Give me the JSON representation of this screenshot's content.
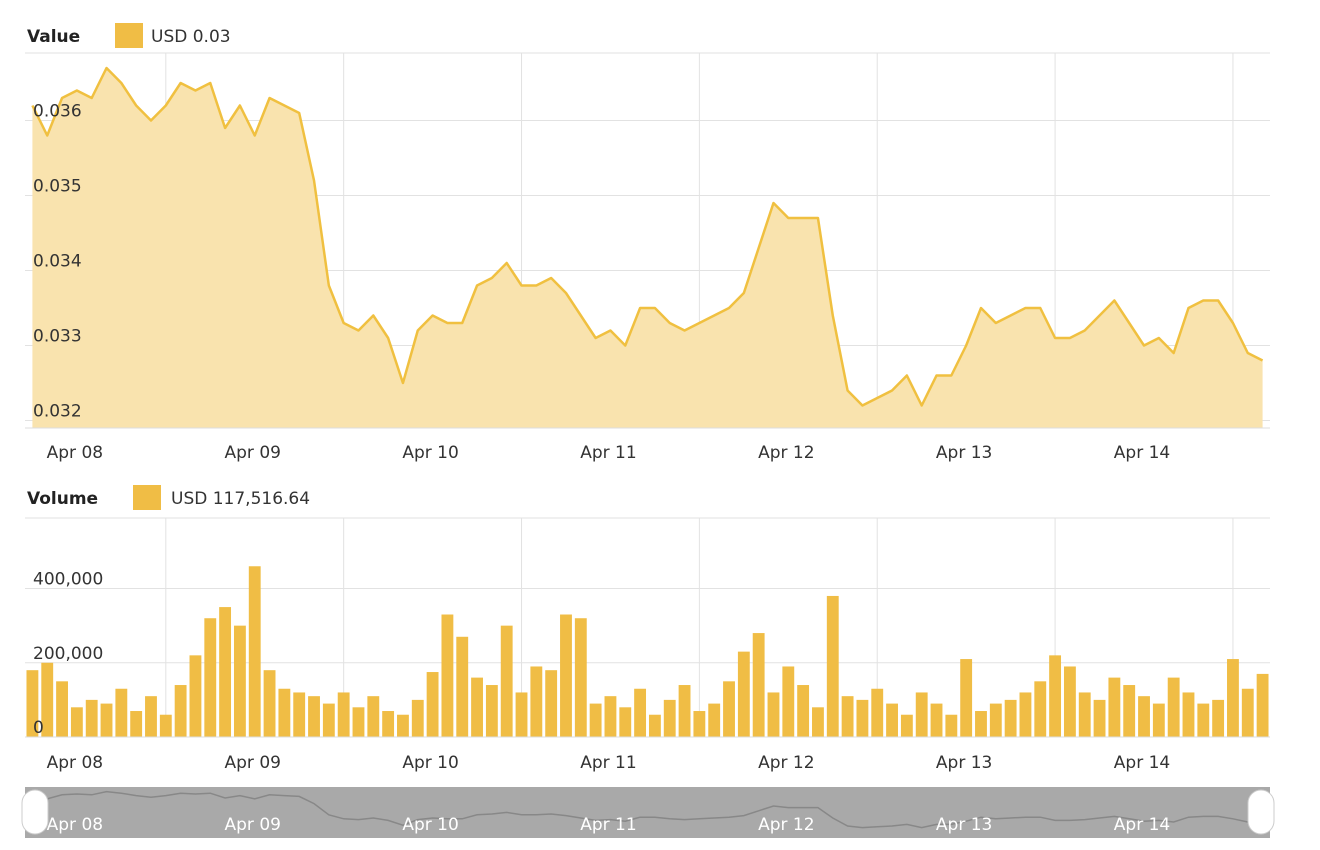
{
  "chart_data": [
    {
      "type": "area",
      "title": "Value",
      "legend_label": "USD 0.03",
      "color": "#f0c040",
      "fill": "#f9e3ae",
      "grid": true,
      "categories": [
        null,
        null,
        null,
        "Apr 08",
        null,
        null,
        null,
        null,
        null,
        null,
        null,
        null,
        null,
        null,
        null,
        "Apr 09",
        null,
        null,
        null,
        null,
        null,
        null,
        null,
        null,
        null,
        null,
        null,
        "Apr 10",
        null,
        null,
        null,
        null,
        null,
        null,
        null,
        null,
        null,
        null,
        null,
        "Apr 11",
        null,
        null,
        null,
        null,
        null,
        null,
        null,
        null,
        null,
        null,
        null,
        "Apr 12",
        null,
        null,
        null,
        null,
        null,
        null,
        null,
        null,
        null,
        null,
        null,
        "Apr 13",
        null,
        null,
        null,
        null,
        null,
        null,
        null,
        null,
        null,
        null,
        null,
        "Apr 14",
        null,
        null,
        null,
        null,
        null,
        null,
        null,
        null
      ],
      "values": [
        0.0362,
        0.0358,
        0.0363,
        0.0364,
        0.0363,
        0.0367,
        0.0365,
        0.0362,
        0.036,
        0.0362,
        0.0365,
        0.0364,
        0.0365,
        0.0359,
        0.0362,
        0.0358,
        0.0363,
        0.0362,
        0.0361,
        0.0352,
        0.0338,
        0.0333,
        0.0332,
        0.0334,
        0.0331,
        0.0325,
        0.0332,
        0.0334,
        0.0333,
        0.0333,
        0.0338,
        0.0339,
        0.0341,
        0.0338,
        0.0338,
        0.0339,
        0.0337,
        0.0334,
        0.0331,
        0.0332,
        0.033,
        0.0335,
        0.0335,
        0.0333,
        0.0332,
        0.0333,
        0.0334,
        0.0335,
        0.0337,
        0.0343,
        0.0349,
        0.0347,
        0.0347,
        0.0347,
        0.0334,
        0.0324,
        0.0322,
        0.0323,
        0.0324,
        0.0326,
        0.0322,
        0.0326,
        0.0326,
        0.033,
        0.0335,
        0.0333,
        0.0334,
        0.0335,
        0.0335,
        0.0331,
        0.0331,
        0.0332,
        0.0334,
        0.0336,
        0.0333,
        0.033,
        0.0331,
        0.0329,
        0.0335,
        0.0336,
        0.0336,
        0.0333,
        0.0329,
        0.0328
      ],
      "ylim": [
        0.0319,
        0.0369
      ],
      "yticks": [
        0.032,
        0.033,
        0.034,
        0.035,
        0.036
      ]
    },
    {
      "type": "bar",
      "title": "Volume",
      "legend_label": "USD 117,516.64",
      "color": "#f0bd45",
      "grid": true,
      "categories": [
        null,
        null,
        null,
        "Apr 08",
        null,
        null,
        null,
        null,
        null,
        null,
        null,
        null,
        null,
        null,
        null,
        "Apr 09",
        null,
        null,
        null,
        null,
        null,
        null,
        null,
        null,
        null,
        null,
        null,
        "Apr 10",
        null,
        null,
        null,
        null,
        null,
        null,
        null,
        null,
        null,
        null,
        null,
        "Apr 11",
        null,
        null,
        null,
        null,
        null,
        null,
        null,
        null,
        null,
        null,
        null,
        "Apr 12",
        null,
        null,
        null,
        null,
        null,
        null,
        null,
        null,
        null,
        null,
        null,
        "Apr 13",
        null,
        null,
        null,
        null,
        null,
        null,
        null,
        null,
        null,
        null,
        null,
        "Apr 14",
        null,
        null,
        null,
        null,
        null,
        null,
        null,
        null
      ],
      "values": [
        180000,
        200000,
        150000,
        80000,
        100000,
        90000,
        130000,
        70000,
        110000,
        60000,
        140000,
        220000,
        320000,
        350000,
        300000,
        460000,
        180000,
        130000,
        120000,
        110000,
        90000,
        120000,
        80000,
        110000,
        70000,
        60000,
        100000,
        175000,
        330000,
        270000,
        160000,
        140000,
        300000,
        120000,
        190000,
        180000,
        330000,
        320000,
        90000,
        110000,
        80000,
        130000,
        60000,
        100000,
        140000,
        70000,
        90000,
        150000,
        230000,
        280000,
        120000,
        190000,
        140000,
        80000,
        380000,
        110000,
        100000,
        130000,
        90000,
        60000,
        120000,
        90000,
        60000,
        210000,
        70000,
        90000,
        100000,
        120000,
        150000,
        220000,
        190000,
        120000,
        100000,
        160000,
        140000,
        110000,
        90000,
        160000,
        120000,
        90000,
        100000,
        210000,
        130000,
        170000
      ],
      "ylim": [
        0,
        590000
      ],
      "yticks": [
        0,
        {
          "value": 200000,
          "label": "200,000"
        },
        {
          "value": 400000,
          "label": "400,000"
        }
      ]
    }
  ],
  "navigator": {
    "labels": [
      "Apr 08",
      "Apr 09",
      "Apr 10",
      "Apr 11",
      "Apr 12",
      "Apr 13",
      "Apr 14"
    ]
  }
}
